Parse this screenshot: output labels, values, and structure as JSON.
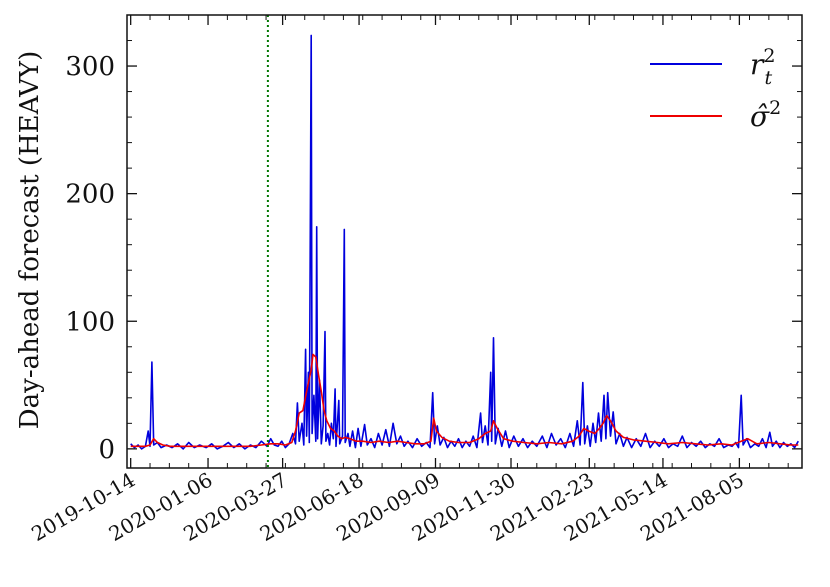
{
  "chart_data": {
    "type": "line",
    "ylabel": "Day-ahead forecast (HEAVY)",
    "ylim": [
      -15,
      340
    ],
    "yticks": [
      0,
      100,
      200,
      300
    ],
    "x_range": [
      "2019-10-14",
      "2021-10-10"
    ],
    "xticks": [
      "2019-10-14",
      "2020-01-06",
      "2020-03-27",
      "2020-06-18",
      "2020-09-09",
      "2020-11-30",
      "2021-02-23",
      "2021-05-14",
      "2021-08-05"
    ],
    "vline": {
      "date": "2020-03-11",
      "color": "#007700",
      "style": "dotted"
    },
    "legend": {
      "position": "top-right"
    },
    "series": [
      {
        "name": "r_t^2",
        "legend_label": "r",
        "legend_sup": "2",
        "legend_sub": "t",
        "color": "#0000dd",
        "points": [
          [
            "2019-10-14",
            4
          ],
          [
            "2019-10-18",
            1
          ],
          [
            "2019-10-22",
            3
          ],
          [
            "2019-10-26",
            0
          ],
          [
            "2019-10-30",
            2
          ],
          [
            "2019-11-02",
            14
          ],
          [
            "2019-11-04",
            2
          ],
          [
            "2019-11-06",
            68
          ],
          [
            "2019-11-08",
            3
          ],
          [
            "2019-11-12",
            5
          ],
          [
            "2019-11-16",
            1
          ],
          [
            "2019-11-22",
            3
          ],
          [
            "2019-11-28",
            1
          ],
          [
            "2019-12-04",
            4
          ],
          [
            "2019-12-10",
            0
          ],
          [
            "2019-12-16",
            5
          ],
          [
            "2019-12-22",
            1
          ],
          [
            "2019-12-28",
            3
          ],
          [
            "2020-01-04",
            1
          ],
          [
            "2020-01-10",
            4
          ],
          [
            "2020-01-16",
            0
          ],
          [
            "2020-01-22",
            2
          ],
          [
            "2020-01-28",
            5
          ],
          [
            "2020-02-03",
            1
          ],
          [
            "2020-02-09",
            4
          ],
          [
            "2020-02-15",
            0
          ],
          [
            "2020-02-21",
            3
          ],
          [
            "2020-02-27",
            1
          ],
          [
            "2020-03-04",
            6
          ],
          [
            "2020-03-10",
            2
          ],
          [
            "2020-03-14",
            8
          ],
          [
            "2020-03-18",
            3
          ],
          [
            "2020-03-22",
            2
          ],
          [
            "2020-03-26",
            6
          ],
          [
            "2020-03-30",
            1
          ],
          [
            "2020-04-03",
            4
          ],
          [
            "2020-04-07",
            12
          ],
          [
            "2020-04-10",
            4
          ],
          [
            "2020-04-12",
            36
          ],
          [
            "2020-04-14",
            6
          ],
          [
            "2020-04-17",
            20
          ],
          [
            "2020-04-19",
            3
          ],
          [
            "2020-04-21",
            78
          ],
          [
            "2020-04-22",
            10
          ],
          [
            "2020-04-24",
            60
          ],
          [
            "2020-04-25",
            5
          ],
          [
            "2020-04-27",
            324
          ],
          [
            "2020-04-28",
            12
          ],
          [
            "2020-04-30",
            42
          ],
          [
            "2020-05-02",
            6
          ],
          [
            "2020-05-03",
            174
          ],
          [
            "2020-05-04",
            8
          ],
          [
            "2020-05-06",
            54
          ],
          [
            "2020-05-08",
            4
          ],
          [
            "2020-05-10",
            18
          ],
          [
            "2020-05-12",
            92
          ],
          [
            "2020-05-13",
            6
          ],
          [
            "2020-05-15",
            12
          ],
          [
            "2020-05-17",
            3
          ],
          [
            "2020-05-19",
            20
          ],
          [
            "2020-05-21",
            8
          ],
          [
            "2020-05-23",
            47
          ],
          [
            "2020-05-24",
            2
          ],
          [
            "2020-05-27",
            38
          ],
          [
            "2020-05-28",
            4
          ],
          [
            "2020-05-31",
            10
          ],
          [
            "2020-06-02",
            172
          ],
          [
            "2020-06-03",
            5
          ],
          [
            "2020-06-06",
            12
          ],
          [
            "2020-06-08",
            2
          ],
          [
            "2020-06-11",
            14
          ],
          [
            "2020-06-14",
            1
          ],
          [
            "2020-06-17",
            16
          ],
          [
            "2020-06-20",
            2
          ],
          [
            "2020-06-24",
            19
          ],
          [
            "2020-06-27",
            3
          ],
          [
            "2020-07-01",
            8
          ],
          [
            "2020-07-05",
            1
          ],
          [
            "2020-07-09",
            12
          ],
          [
            "2020-07-13",
            3
          ],
          [
            "2020-07-17",
            15
          ],
          [
            "2020-07-21",
            2
          ],
          [
            "2020-07-25",
            20
          ],
          [
            "2020-07-29",
            4
          ],
          [
            "2020-08-02",
            10
          ],
          [
            "2020-08-06",
            2
          ],
          [
            "2020-08-10",
            6
          ],
          [
            "2020-08-15",
            1
          ],
          [
            "2020-08-20",
            8
          ],
          [
            "2020-08-25",
            2
          ],
          [
            "2020-08-30",
            5
          ],
          [
            "2020-09-03",
            1
          ],
          [
            "2020-09-06",
            44
          ],
          [
            "2020-09-08",
            4
          ],
          [
            "2020-09-11",
            18
          ],
          [
            "2020-09-14",
            3
          ],
          [
            "2020-09-18",
            9
          ],
          [
            "2020-09-22",
            1
          ],
          [
            "2020-09-26",
            6
          ],
          [
            "2020-09-30",
            2
          ],
          [
            "2020-10-04",
            8
          ],
          [
            "2020-10-08",
            1
          ],
          [
            "2020-10-12",
            6
          ],
          [
            "2020-10-16",
            2
          ],
          [
            "2020-10-20",
            10
          ],
          [
            "2020-10-24",
            1
          ],
          [
            "2020-10-28",
            28
          ],
          [
            "2020-10-30",
            5
          ],
          [
            "2020-11-02",
            18
          ],
          [
            "2020-11-05",
            3
          ],
          [
            "2020-11-08",
            60
          ],
          [
            "2020-11-09",
            6
          ],
          [
            "2020-11-11",
            87
          ],
          [
            "2020-11-13",
            4
          ],
          [
            "2020-11-16",
            16
          ],
          [
            "2020-11-20",
            2
          ],
          [
            "2020-11-24",
            14
          ],
          [
            "2020-11-28",
            1
          ],
          [
            "2020-12-03",
            10
          ],
          [
            "2020-12-08",
            2
          ],
          [
            "2020-12-13",
            8
          ],
          [
            "2020-12-18",
            1
          ],
          [
            "2020-12-23",
            6
          ],
          [
            "2020-12-28",
            2
          ],
          [
            "2021-01-03",
            10
          ],
          [
            "2021-01-08",
            1
          ],
          [
            "2021-01-13",
            12
          ],
          [
            "2021-01-18",
            3
          ],
          [
            "2021-01-23",
            8
          ],
          [
            "2021-01-28",
            1
          ],
          [
            "2021-02-02",
            12
          ],
          [
            "2021-02-06",
            2
          ],
          [
            "2021-02-10",
            22
          ],
          [
            "2021-02-13",
            3
          ],
          [
            "2021-02-16",
            52
          ],
          [
            "2021-02-18",
            4
          ],
          [
            "2021-02-21",
            18
          ],
          [
            "2021-02-24",
            2
          ],
          [
            "2021-02-27",
            20
          ],
          [
            "2021-03-02",
            5
          ],
          [
            "2021-03-05",
            28
          ],
          [
            "2021-03-08",
            6
          ],
          [
            "2021-03-11",
            42
          ],
          [
            "2021-03-13",
            8
          ],
          [
            "2021-03-15",
            44
          ],
          [
            "2021-03-18",
            10
          ],
          [
            "2021-03-21",
            29
          ],
          [
            "2021-03-24",
            4
          ],
          [
            "2021-03-28",
            12
          ],
          [
            "2021-04-01",
            2
          ],
          [
            "2021-04-05",
            9
          ],
          [
            "2021-04-10",
            1
          ],
          [
            "2021-04-15",
            8
          ],
          [
            "2021-04-20",
            2
          ],
          [
            "2021-04-25",
            12
          ],
          [
            "2021-04-30",
            1
          ],
          [
            "2021-05-05",
            6
          ],
          [
            "2021-05-10",
            2
          ],
          [
            "2021-05-15",
            8
          ],
          [
            "2021-05-20",
            1
          ],
          [
            "2021-05-25",
            4
          ],
          [
            "2021-05-30",
            2
          ],
          [
            "2021-06-04",
            10
          ],
          [
            "2021-06-09",
            1
          ],
          [
            "2021-06-14",
            5
          ],
          [
            "2021-06-19",
            2
          ],
          [
            "2021-06-24",
            6
          ],
          [
            "2021-06-29",
            1
          ],
          [
            "2021-07-04",
            4
          ],
          [
            "2021-07-09",
            2
          ],
          [
            "2021-07-14",
            8
          ],
          [
            "2021-07-19",
            1
          ],
          [
            "2021-07-24",
            3
          ],
          [
            "2021-07-28",
            2
          ],
          [
            "2021-08-01",
            5
          ],
          [
            "2021-08-04",
            1
          ],
          [
            "2021-08-07",
            42
          ],
          [
            "2021-08-09",
            3
          ],
          [
            "2021-08-13",
            8
          ],
          [
            "2021-08-17",
            1
          ],
          [
            "2021-08-22",
            4
          ],
          [
            "2021-08-26",
            2
          ],
          [
            "2021-08-30",
            8
          ],
          [
            "2021-09-03",
            1
          ],
          [
            "2021-09-07",
            13
          ],
          [
            "2021-09-10",
            2
          ],
          [
            "2021-09-14",
            6
          ],
          [
            "2021-09-18",
            1
          ],
          [
            "2021-09-22",
            5
          ],
          [
            "2021-09-26",
            2
          ],
          [
            "2021-09-30",
            4
          ],
          [
            "2021-10-04",
            1
          ],
          [
            "2021-10-08",
            6
          ]
        ]
      },
      {
        "name": "sigma_hat^2",
        "legend_label": "σ̂",
        "legend_sup": "2",
        "legend_sub": "",
        "color": "#ee0000",
        "points": [
          [
            "2019-10-14",
            2
          ],
          [
            "2019-10-22",
            2
          ],
          [
            "2019-10-30",
            2
          ],
          [
            "2019-11-04",
            3
          ],
          [
            "2019-11-08",
            8
          ],
          [
            "2019-11-12",
            5
          ],
          [
            "2019-11-18",
            3
          ],
          [
            "2019-11-26",
            2
          ],
          [
            "2019-12-06",
            2
          ],
          [
            "2019-12-16",
            2
          ],
          [
            "2019-12-28",
            2
          ],
          [
            "2020-01-10",
            2
          ],
          [
            "2020-01-24",
            2
          ],
          [
            "2020-02-07",
            2
          ],
          [
            "2020-02-21",
            2
          ],
          [
            "2020-03-04",
            3
          ],
          [
            "2020-03-14",
            4
          ],
          [
            "2020-03-22",
            4
          ],
          [
            "2020-03-30",
            3
          ],
          [
            "2020-04-06",
            5
          ],
          [
            "2020-04-10",
            14
          ],
          [
            "2020-04-14",
            28
          ],
          [
            "2020-04-18",
            30
          ],
          [
            "2020-04-22",
            45
          ],
          [
            "2020-04-25",
            55
          ],
          [
            "2020-04-27",
            62
          ],
          [
            "2020-04-29",
            74
          ],
          [
            "2020-05-02",
            72
          ],
          [
            "2020-05-05",
            58
          ],
          [
            "2020-05-08",
            45
          ],
          [
            "2020-05-11",
            30
          ],
          [
            "2020-05-14",
            22
          ],
          [
            "2020-05-18",
            16
          ],
          [
            "2020-05-22",
            14
          ],
          [
            "2020-05-26",
            10
          ],
          [
            "2020-05-30",
            8
          ],
          [
            "2020-06-03",
            9
          ],
          [
            "2020-06-08",
            8
          ],
          [
            "2020-06-15",
            6
          ],
          [
            "2020-06-22",
            6
          ],
          [
            "2020-07-01",
            5
          ],
          [
            "2020-07-10",
            6
          ],
          [
            "2020-07-20",
            5
          ],
          [
            "2020-07-30",
            6
          ],
          [
            "2020-08-08",
            5
          ],
          [
            "2020-08-18",
            4
          ],
          [
            "2020-08-28",
            4
          ],
          [
            "2020-09-04",
            6
          ],
          [
            "2020-09-07",
            24
          ],
          [
            "2020-09-10",
            14
          ],
          [
            "2020-09-16",
            9
          ],
          [
            "2020-09-24",
            6
          ],
          [
            "2020-10-04",
            5
          ],
          [
            "2020-10-16",
            5
          ],
          [
            "2020-10-26",
            8
          ],
          [
            "2020-11-02",
            12
          ],
          [
            "2020-11-08",
            14
          ],
          [
            "2020-11-11",
            22
          ],
          [
            "2020-11-15",
            16
          ],
          [
            "2020-11-22",
            8
          ],
          [
            "2020-12-02",
            6
          ],
          [
            "2020-12-14",
            5
          ],
          [
            "2020-12-28",
            4
          ],
          [
            "2021-01-10",
            5
          ],
          [
            "2021-01-24",
            4
          ],
          [
            "2021-02-05",
            6
          ],
          [
            "2021-02-12",
            10
          ],
          [
            "2021-02-17",
            16
          ],
          [
            "2021-02-22",
            14
          ],
          [
            "2021-03-01",
            12
          ],
          [
            "2021-03-06",
            16
          ],
          [
            "2021-03-10",
            20
          ],
          [
            "2021-03-14",
            26
          ],
          [
            "2021-03-18",
            22
          ],
          [
            "2021-03-24",
            14
          ],
          [
            "2021-04-01",
            9
          ],
          [
            "2021-04-12",
            7
          ],
          [
            "2021-04-25",
            6
          ],
          [
            "2021-05-08",
            5
          ],
          [
            "2021-05-20",
            4
          ],
          [
            "2021-06-04",
            5
          ],
          [
            "2021-06-18",
            4
          ],
          [
            "2021-07-02",
            3
          ],
          [
            "2021-07-16",
            4
          ],
          [
            "2021-07-28",
            3
          ],
          [
            "2021-08-07",
            6
          ],
          [
            "2021-08-14",
            8
          ],
          [
            "2021-08-24",
            4
          ],
          [
            "2021-09-06",
            5
          ],
          [
            "2021-09-18",
            4
          ],
          [
            "2021-09-30",
            3
          ],
          [
            "2021-10-08",
            3
          ]
        ]
      }
    ]
  }
}
